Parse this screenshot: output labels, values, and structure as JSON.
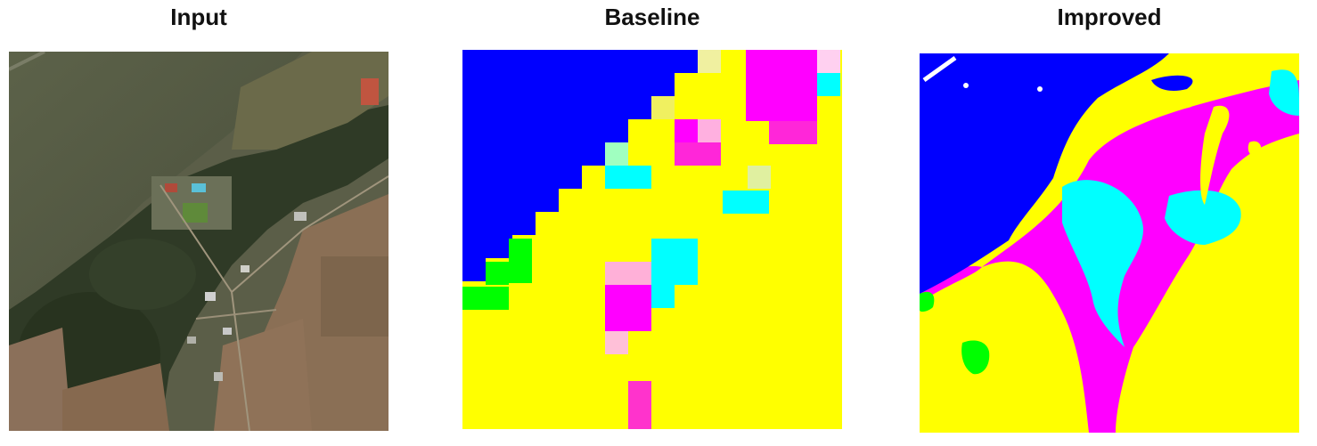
{
  "figure": {
    "panels": [
      {
        "title": "Input",
        "image": "satellite-rgb-image"
      },
      {
        "title": "Baseline",
        "image": "segmentation-map-blocky"
      },
      {
        "title": "Improved",
        "image": "segmentation-map-smooth"
      }
    ],
    "legend_colors": {
      "water": "#0000ff",
      "class_yellow": "#ffff00",
      "class_magenta": "#ff00ff",
      "class_cyan": "#00ffff",
      "class_green": "#00ff00",
      "class_white": "#ffffff"
    }
  }
}
